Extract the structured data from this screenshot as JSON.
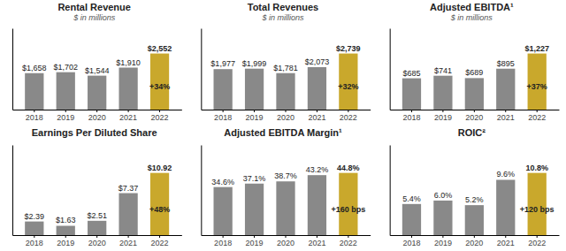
{
  "chart_data": [
    {
      "type": "bar",
      "title": "Rental Revenue",
      "subtitle": "$ in millions",
      "categories": [
        "2018",
        "2019",
        "2020",
        "2021",
        "2022"
      ],
      "values": [
        1658,
        1702,
        1544,
        1910,
        2552
      ],
      "value_labels": [
        "$1,658",
        "$1,702",
        "$1,544",
        "$1,910",
        "$2,552"
      ],
      "data_labels": true,
      "annotation": "+34%",
      "colors": [
        "#898989",
        "#898989",
        "#898989",
        "#898989",
        "#C9A82C"
      ],
      "ylim": [
        0,
        3700.4
      ],
      "tick_labels": "x",
      "grid": false
    },
    {
      "type": "bar",
      "title": "Total Revenues",
      "subtitle": "$ in millions",
      "categories": [
        "2018",
        "2019",
        "2020",
        "2021",
        "2022"
      ],
      "values": [
        1977,
        1999,
        1781,
        2073,
        2739
      ],
      "value_labels": [
        "$1,977",
        "$1,999",
        "$1,781",
        "$2,073",
        "$2,739"
      ],
      "data_labels": true,
      "annotation": "+32%",
      "colors": [
        "#898989",
        "#898989",
        "#898989",
        "#898989",
        "#C9A82C"
      ],
      "ylim": [
        0,
        3971.55
      ],
      "tick_labels": "x",
      "grid": false
    },
    {
      "type": "bar",
      "title": "Adjusted EBITDA¹",
      "subtitle": "$ in millions",
      "categories": [
        "2018",
        "2019",
        "2020",
        "2021",
        "2022"
      ],
      "values": [
        685,
        741,
        689,
        895,
        1227
      ],
      "value_labels": [
        "$685",
        "$741",
        "$689",
        "$895",
        "$1,227"
      ],
      "data_labels": true,
      "annotation": "+37%",
      "colors": [
        "#898989",
        "#898989",
        "#898989",
        "#898989",
        "#C9A82C"
      ],
      "ylim": [
        0,
        1779.15
      ],
      "tick_labels": "x",
      "grid": false
    },
    {
      "type": "bar",
      "title": "Earnings Per Diluted Share",
      "categories": [
        "2018",
        "2019",
        "2020",
        "2021",
        "2022"
      ],
      "values": [
        2.39,
        1.63,
        2.51,
        7.37,
        10.92
      ],
      "value_labels": [
        "$2.39",
        "$1.63",
        "$2.51",
        "$7.37",
        "$10.92"
      ],
      "data_labels": true,
      "annotation": "+48%",
      "colors": [
        "#898989",
        "#898989",
        "#898989",
        "#898989",
        "#C9A82C"
      ],
      "ylim": [
        0,
        15.834
      ],
      "tick_labels": "x",
      "grid": false
    },
    {
      "type": "bar",
      "title": "Adjusted EBITDA Margin¹",
      "categories": [
        "2018",
        "2019",
        "2020",
        "2021",
        "2022"
      ],
      "values": [
        34.6,
        37.1,
        38.7,
        43.2,
        44.8
      ],
      "value_labels": [
        "34.6%",
        "37.1%",
        "38.7%",
        "43.2%",
        "44.8%"
      ],
      "data_labels": true,
      "annotation": "+160 bps",
      "colors": [
        "#898989",
        "#898989",
        "#898989",
        "#898989",
        "#C9A82C"
      ],
      "ylim": [
        0,
        64.96
      ],
      "tick_labels": "x",
      "grid": false
    },
    {
      "type": "bar",
      "title": "ROIC²",
      "categories": [
        "2018",
        "2019",
        "2020",
        "2021",
        "2022"
      ],
      "values": [
        5.4,
        6.0,
        5.2,
        9.6,
        10.8
      ],
      "value_labels": [
        "5.4%",
        "6.0%",
        "5.2%",
        "9.6%",
        "10.8%"
      ],
      "data_labels": true,
      "annotation": "+120 bps",
      "colors": [
        "#898989",
        "#898989",
        "#898989",
        "#898989",
        "#C9A82C"
      ],
      "ylim": [
        0,
        15.66
      ],
      "tick_labels": "x",
      "grid": false
    }
  ]
}
